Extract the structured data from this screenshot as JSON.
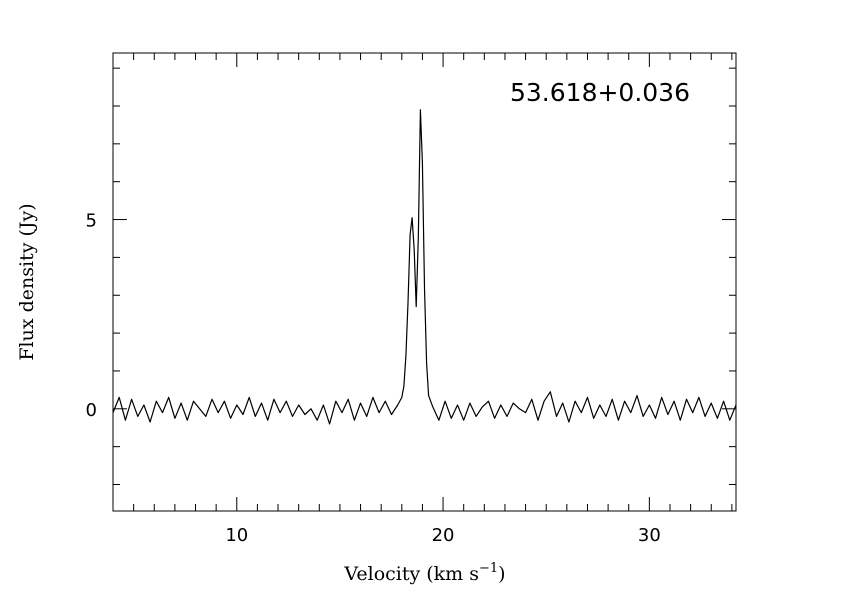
{
  "chart_data": {
    "type": "line",
    "title": "53.618+0.036",
    "xlabel": "Velocity (km s",
    "xlabel_sup": "−1",
    "xlabel_end": ")",
    "ylabel": "Flux density (Jy)",
    "xlim": [
      4.0,
      34.2
    ],
    "ylim": [
      -2.7,
      9.4
    ],
    "x_major_ticks": [
      10,
      20,
      30
    ],
    "x_minor_step": 1,
    "y_major_ticks": [
      0,
      5
    ],
    "y_minor_step": 1,
    "series": [
      {
        "x": [
          4.0,
          4.3,
          4.6,
          4.9,
          5.2,
          5.5,
          5.8,
          6.1,
          6.4,
          6.7,
          7.0,
          7.3,
          7.6,
          7.9,
          8.2,
          8.5,
          8.8,
          9.1,
          9.4,
          9.7,
          10.0,
          10.3,
          10.6,
          10.9,
          11.2,
          11.5,
          11.8,
          12.1,
          12.4,
          12.7,
          13.0,
          13.3,
          13.6,
          13.9,
          14.2,
          14.5,
          14.8,
          15.1,
          15.4,
          15.7,
          16.0,
          16.3,
          16.6,
          16.9,
          17.2,
          17.5,
          17.8,
          18.0,
          18.1,
          18.2,
          18.3,
          18.4,
          18.5,
          18.6,
          18.7,
          18.8,
          18.9,
          19.0,
          19.1,
          19.2,
          19.3,
          19.5,
          19.8,
          20.1,
          20.4,
          20.7,
          21.0,
          21.3,
          21.6,
          21.9,
          22.2,
          22.5,
          22.8,
          23.1,
          23.4,
          23.7,
          24.0,
          24.3,
          24.6,
          24.9,
          25.2,
          25.5,
          25.8,
          26.1,
          26.4,
          26.7,
          27.0,
          27.3,
          27.6,
          27.9,
          28.2,
          28.5,
          28.8,
          29.1,
          29.4,
          29.7,
          30.0,
          30.3,
          30.6,
          30.9,
          31.2,
          31.5,
          31.8,
          32.1,
          32.4,
          32.7,
          33.0,
          33.3,
          33.6,
          33.9,
          34.2
        ],
        "y": [
          -0.1,
          0.3,
          -0.3,
          0.25,
          -0.2,
          0.1,
          -0.35,
          0.2,
          -0.1,
          0.3,
          -0.25,
          0.15,
          -0.3,
          0.2,
          0.0,
          -0.2,
          0.25,
          -0.1,
          0.2,
          -0.25,
          0.1,
          -0.15,
          0.3,
          -0.2,
          0.15,
          -0.3,
          0.25,
          -0.1,
          0.2,
          -0.2,
          0.1,
          -0.15,
          0.0,
          -0.3,
          0.1,
          -0.4,
          0.2,
          -0.1,
          0.25,
          -0.3,
          0.15,
          -0.2,
          0.3,
          -0.1,
          0.2,
          -0.15,
          0.1,
          0.3,
          0.6,
          1.4,
          2.8,
          4.6,
          5.05,
          4.2,
          2.7,
          4.5,
          7.9,
          6.5,
          3.2,
          1.2,
          0.35,
          0.05,
          -0.3,
          0.2,
          -0.25,
          0.1,
          -0.3,
          0.15,
          -0.2,
          0.05,
          0.2,
          -0.25,
          0.1,
          -0.2,
          0.15,
          0.0,
          -0.1,
          0.25,
          -0.3,
          0.2,
          0.45,
          -0.2,
          0.15,
          -0.35,
          0.2,
          -0.1,
          0.3,
          -0.25,
          0.1,
          -0.2,
          0.25,
          -0.3,
          0.2,
          -0.1,
          0.35,
          -0.2,
          0.1,
          -0.25,
          0.3,
          -0.15,
          0.2,
          -0.3,
          0.25,
          -0.1,
          0.3,
          -0.2,
          0.15,
          -0.25,
          0.2,
          -0.3,
          0.1
        ]
      }
    ]
  }
}
